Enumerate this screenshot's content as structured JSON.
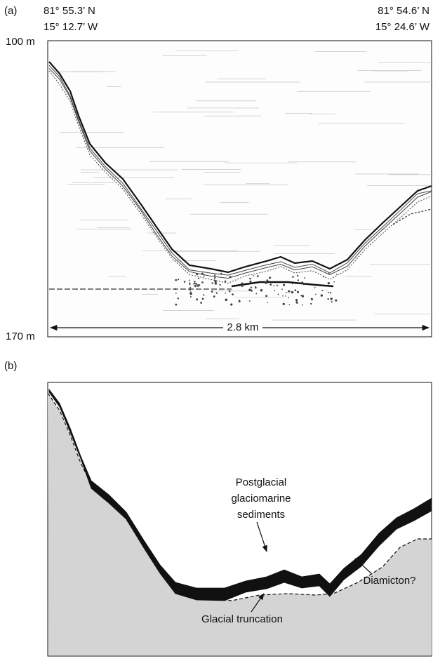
{
  "panel_a": {
    "label": "(a)",
    "start": {
      "lat": "81° 55.3’ N",
      "lon": "15° 12.7’ W"
    },
    "end": {
      "lat": "81° 54.6’ N",
      "lon": "15° 24.6’ W"
    },
    "depth_top": "100 m",
    "depth_bottom": "170 m",
    "distance": "2.8 km"
  },
  "panel_b": {
    "label": "(b)",
    "sediment_label": [
      "Postglacial",
      "glaciomarine",
      "sediments"
    ],
    "truncation_label": "Glacial truncation",
    "diamicton_label": "Diamicton?"
  }
}
